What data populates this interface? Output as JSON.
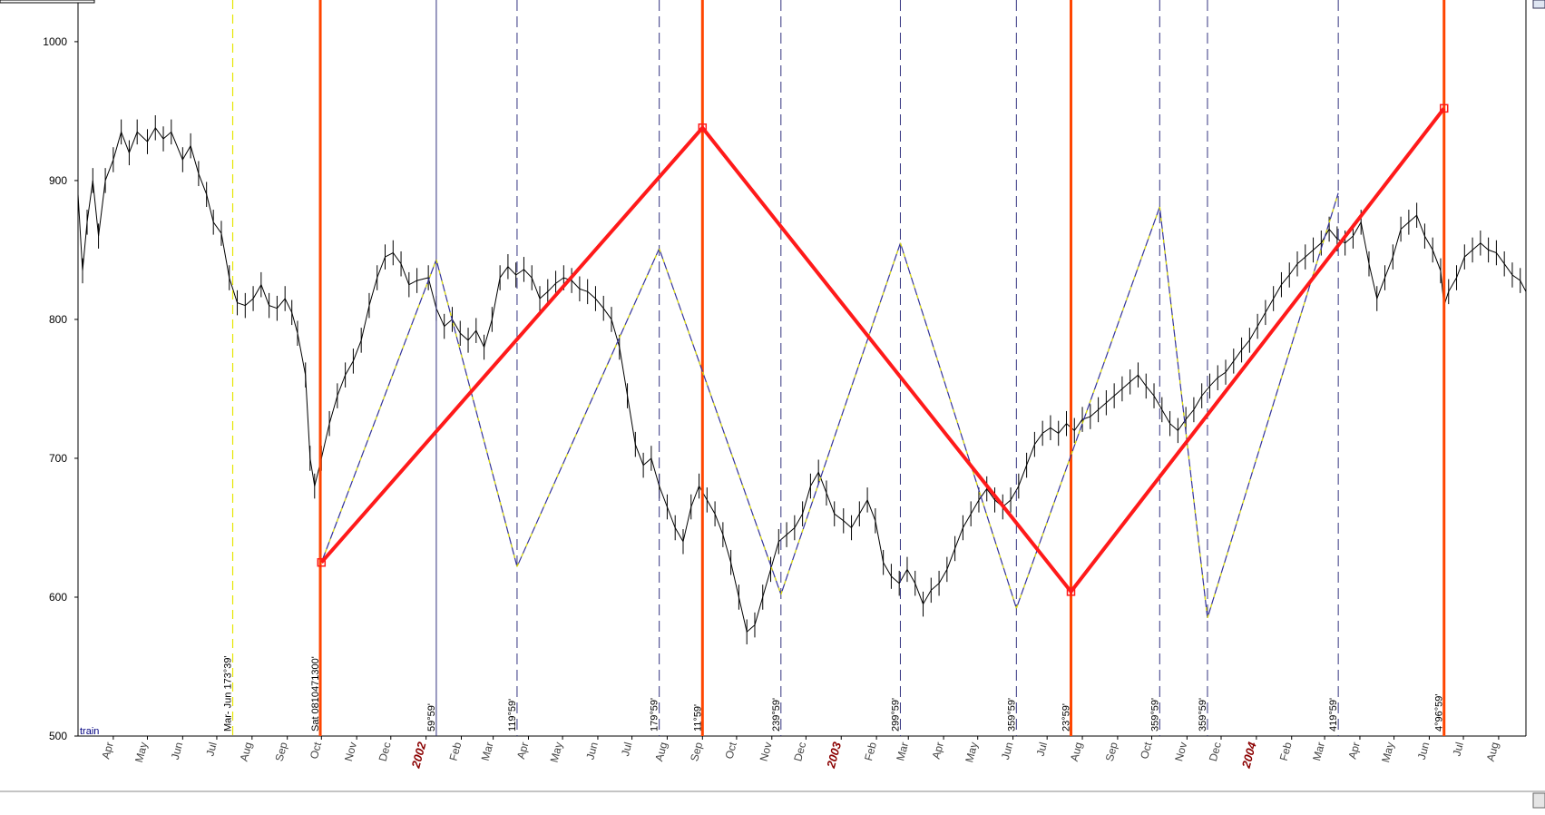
{
  "colors": {
    "price": "#000000",
    "major_cycle": "#ff4500",
    "zigzag_main": "#ff1a1a",
    "zigzag_thin": "#333399",
    "zigzag_thin_alt": "#e6e600",
    "minor_cycle": "#333380",
    "year_label": "#8b0000",
    "legend": "#000080"
  },
  "legend": {
    "label": "train"
  },
  "chart_data": {
    "type": "line",
    "title": "",
    "xlabel": "",
    "ylabel": "",
    "ylim": [
      500,
      1030
    ],
    "xlim": [
      "2001-03-01",
      "2004-08-25"
    ],
    "yticks": [
      500,
      600,
      700,
      800,
      900,
      1000
    ],
    "grid": false,
    "x_month_labels": [
      {
        "date": "2001-04-01",
        "label": "Apr"
      },
      {
        "date": "2001-05-01",
        "label": "May"
      },
      {
        "date": "2001-06-01",
        "label": "Jun"
      },
      {
        "date": "2001-07-01",
        "label": "Jul"
      },
      {
        "date": "2001-08-01",
        "label": "Aug"
      },
      {
        "date": "2001-09-01",
        "label": "Sep"
      },
      {
        "date": "2001-10-01",
        "label": "Oct"
      },
      {
        "date": "2001-11-01",
        "label": "Nov"
      },
      {
        "date": "2001-12-01",
        "label": "Dec"
      },
      {
        "date": "2002-01-01",
        "label": "2002",
        "year": true
      },
      {
        "date": "2002-02-01",
        "label": "Feb"
      },
      {
        "date": "2002-03-01",
        "label": "Mar"
      },
      {
        "date": "2002-04-01",
        "label": "Apr"
      },
      {
        "date": "2002-05-01",
        "label": "May"
      },
      {
        "date": "2002-06-01",
        "label": "Jun"
      },
      {
        "date": "2002-07-01",
        "label": "Jul"
      },
      {
        "date": "2002-08-01",
        "label": "Aug"
      },
      {
        "date": "2002-09-01",
        "label": "Sep"
      },
      {
        "date": "2002-10-01",
        "label": "Oct"
      },
      {
        "date": "2002-11-01",
        "label": "Nov"
      },
      {
        "date": "2002-12-01",
        "label": "Dec"
      },
      {
        "date": "2003-01-01",
        "label": "2003",
        "year": true
      },
      {
        "date": "2003-02-01",
        "label": "Feb"
      },
      {
        "date": "2003-03-01",
        "label": "Mar"
      },
      {
        "date": "2003-04-01",
        "label": "Apr"
      },
      {
        "date": "2003-05-01",
        "label": "May"
      },
      {
        "date": "2003-06-01",
        "label": "Jun"
      },
      {
        "date": "2003-07-01",
        "label": "Jul"
      },
      {
        "date": "2003-08-01",
        "label": "Aug"
      },
      {
        "date": "2003-09-01",
        "label": "Sep"
      },
      {
        "date": "2003-10-01",
        "label": "Oct"
      },
      {
        "date": "2003-11-01",
        "label": "Nov"
      },
      {
        "date": "2003-12-01",
        "label": "Dec"
      },
      {
        "date": "2004-01-01",
        "label": "2004",
        "year": true
      },
      {
        "date": "2004-02-01",
        "label": "Feb"
      },
      {
        "date": "2004-03-01",
        "label": "Mar"
      },
      {
        "date": "2004-04-01",
        "label": "Apr"
      },
      {
        "date": "2004-05-01",
        "label": "May"
      },
      {
        "date": "2004-06-01",
        "label": "Jun"
      },
      {
        "date": "2004-07-01",
        "label": "Jul"
      },
      {
        "date": "2004-08-01",
        "label": "Aug"
      }
    ],
    "series": [
      {
        "name": "",
        "style": "price",
        "points": [
          [
            "2001-03-01",
            890
          ],
          [
            "2001-03-05",
            835
          ],
          [
            "2001-03-09",
            870
          ],
          [
            "2001-03-14",
            900
          ],
          [
            "2001-03-19",
            860
          ],
          [
            "2001-03-25",
            900
          ],
          [
            "2001-04-01",
            915
          ],
          [
            "2001-04-08",
            935
          ],
          [
            "2001-04-15",
            920
          ],
          [
            "2001-04-22",
            935
          ],
          [
            "2001-05-01",
            928
          ],
          [
            "2001-05-08",
            938
          ],
          [
            "2001-05-15",
            930
          ],
          [
            "2001-05-22",
            935
          ],
          [
            "2001-06-01",
            915
          ],
          [
            "2001-06-08",
            925
          ],
          [
            "2001-06-15",
            905
          ],
          [
            "2001-06-22",
            890
          ],
          [
            "2001-06-28",
            870
          ],
          [
            "2001-07-05",
            862
          ],
          [
            "2001-07-12",
            830
          ],
          [
            "2001-07-19",
            812
          ],
          [
            "2001-07-26",
            810
          ],
          [
            "2001-08-02",
            815
          ],
          [
            "2001-08-09",
            825
          ],
          [
            "2001-08-16",
            810
          ],
          [
            "2001-08-23",
            808
          ],
          [
            "2001-08-30",
            815
          ],
          [
            "2001-09-05",
            805
          ],
          [
            "2001-09-10",
            790
          ],
          [
            "2001-09-17",
            760
          ],
          [
            "2001-09-21",
            700
          ],
          [
            "2001-09-25",
            680
          ],
          [
            "2001-10-01",
            700
          ],
          [
            "2001-10-08",
            725
          ],
          [
            "2001-10-15",
            745
          ],
          [
            "2001-10-22",
            760
          ],
          [
            "2001-10-29",
            770
          ],
          [
            "2001-11-05",
            785
          ],
          [
            "2001-11-12",
            810
          ],
          [
            "2001-11-19",
            830
          ],
          [
            "2001-11-26",
            845
          ],
          [
            "2001-12-03",
            848
          ],
          [
            "2001-12-10",
            840
          ],
          [
            "2001-12-17",
            825
          ],
          [
            "2001-12-24",
            828
          ],
          [
            "2002-01-03",
            830
          ],
          [
            "2002-01-10",
            808
          ],
          [
            "2002-01-17",
            795
          ],
          [
            "2002-01-24",
            800
          ],
          [
            "2002-01-31",
            790
          ],
          [
            "2002-02-07",
            785
          ],
          [
            "2002-02-14",
            792
          ],
          [
            "2002-02-21",
            780
          ],
          [
            "2002-02-28",
            800
          ],
          [
            "2002-03-07",
            830
          ],
          [
            "2002-03-14",
            838
          ],
          [
            "2002-03-21",
            832
          ],
          [
            "2002-03-28",
            836
          ],
          [
            "2002-04-04",
            830
          ],
          [
            "2002-04-11",
            815
          ],
          [
            "2002-04-18",
            820
          ],
          [
            "2002-04-25",
            826
          ],
          [
            "2002-05-02",
            830
          ],
          [
            "2002-05-09",
            828
          ],
          [
            "2002-05-16",
            822
          ],
          [
            "2002-05-23",
            820
          ],
          [
            "2002-05-30",
            815
          ],
          [
            "2002-06-06",
            808
          ],
          [
            "2002-06-13",
            800
          ],
          [
            "2002-06-20",
            780
          ],
          [
            "2002-06-27",
            745
          ],
          [
            "2002-07-04",
            710
          ],
          [
            "2002-07-11",
            695
          ],
          [
            "2002-07-18",
            700
          ],
          [
            "2002-07-25",
            680
          ],
          [
            "2002-08-01",
            665
          ],
          [
            "2002-08-08",
            650
          ],
          [
            "2002-08-15",
            640
          ],
          [
            "2002-08-22",
            665
          ],
          [
            "2002-08-29",
            680
          ],
          [
            "2002-09-05",
            670
          ],
          [
            "2002-09-12",
            660
          ],
          [
            "2002-09-19",
            645
          ],
          [
            "2002-09-26",
            625
          ],
          [
            "2002-10-03",
            600
          ],
          [
            "2002-10-10",
            575
          ],
          [
            "2002-10-17",
            580
          ],
          [
            "2002-10-24",
            600
          ],
          [
            "2002-10-31",
            620
          ],
          [
            "2002-11-07",
            640
          ],
          [
            "2002-11-14",
            645
          ],
          [
            "2002-11-21",
            650
          ],
          [
            "2002-11-28",
            660
          ],
          [
            "2002-12-05",
            680
          ],
          [
            "2002-12-12",
            690
          ],
          [
            "2002-12-19",
            675
          ],
          [
            "2002-12-26",
            660
          ],
          [
            "2003-01-03",
            655
          ],
          [
            "2003-01-10",
            650
          ],
          [
            "2003-01-17",
            660
          ],
          [
            "2003-01-24",
            670
          ],
          [
            "2003-01-31",
            655
          ],
          [
            "2003-02-07",
            625
          ],
          [
            "2003-02-14",
            615
          ],
          [
            "2003-02-21",
            610
          ],
          [
            "2003-02-28",
            620
          ],
          [
            "2003-03-07",
            610
          ],
          [
            "2003-03-14",
            595
          ],
          [
            "2003-03-21",
            605
          ],
          [
            "2003-03-28",
            610
          ],
          [
            "2003-04-04",
            620
          ],
          [
            "2003-04-11",
            635
          ],
          [
            "2003-04-18",
            650
          ],
          [
            "2003-04-25",
            660
          ],
          [
            "2003-05-02",
            670
          ],
          [
            "2003-05-09",
            678
          ],
          [
            "2003-05-16",
            670
          ],
          [
            "2003-05-23",
            665
          ],
          [
            "2003-05-30",
            670
          ],
          [
            "2003-06-06",
            680
          ],
          [
            "2003-06-13",
            695
          ],
          [
            "2003-06-20",
            710
          ],
          [
            "2003-06-27",
            718
          ],
          [
            "2003-07-04",
            722
          ],
          [
            "2003-07-11",
            718
          ],
          [
            "2003-07-18",
            725
          ],
          [
            "2003-07-25",
            720
          ],
          [
            "2003-08-01",
            728
          ],
          [
            "2003-08-08",
            730
          ],
          [
            "2003-08-15",
            735
          ],
          [
            "2003-08-22",
            740
          ],
          [
            "2003-08-29",
            745
          ],
          [
            "2003-09-05",
            750
          ],
          [
            "2003-09-12",
            755
          ],
          [
            "2003-09-19",
            760
          ],
          [
            "2003-09-26",
            752
          ],
          [
            "2003-10-03",
            745
          ],
          [
            "2003-10-10",
            735
          ],
          [
            "2003-10-17",
            725
          ],
          [
            "2003-10-24",
            720
          ],
          [
            "2003-10-31",
            728
          ],
          [
            "2003-11-07",
            735
          ],
          [
            "2003-11-14",
            745
          ],
          [
            "2003-11-21",
            752
          ],
          [
            "2003-11-28",
            758
          ],
          [
            "2003-12-05",
            762
          ],
          [
            "2003-12-12",
            770
          ],
          [
            "2003-12-19",
            778
          ],
          [
            "2003-12-26",
            785
          ],
          [
            "2004-01-02",
            795
          ],
          [
            "2004-01-09",
            805
          ],
          [
            "2004-01-16",
            815
          ],
          [
            "2004-01-23",
            825
          ],
          [
            "2004-01-30",
            832
          ],
          [
            "2004-02-06",
            840
          ],
          [
            "2004-02-13",
            845
          ],
          [
            "2004-02-20",
            850
          ],
          [
            "2004-02-27",
            855
          ],
          [
            "2004-03-05",
            865
          ],
          [
            "2004-03-12",
            858
          ],
          [
            "2004-03-19",
            855
          ],
          [
            "2004-03-26",
            860
          ],
          [
            "2004-04-02",
            870
          ],
          [
            "2004-04-09",
            840
          ],
          [
            "2004-04-16",
            815
          ],
          [
            "2004-04-23",
            830
          ],
          [
            "2004-04-30",
            845
          ],
          [
            "2004-05-07",
            865
          ],
          [
            "2004-05-14",
            870
          ],
          [
            "2004-05-21",
            875
          ],
          [
            "2004-05-28",
            860
          ],
          [
            "2004-06-04",
            850
          ],
          [
            "2004-06-11",
            835
          ],
          [
            "2004-06-14",
            810
          ],
          [
            "2004-06-18",
            820
          ],
          [
            "2004-06-25",
            830
          ],
          [
            "2004-07-02",
            845
          ],
          [
            "2004-07-09",
            850
          ],
          [
            "2004-07-16",
            855
          ],
          [
            "2004-07-23",
            850
          ],
          [
            "2004-07-30",
            848
          ],
          [
            "2004-08-06",
            840
          ],
          [
            "2004-08-13",
            832
          ],
          [
            "2004-08-20",
            828
          ],
          [
            "2004-08-25",
            820
          ]
        ]
      },
      {
        "name": "",
        "style": "zigzag_main",
        "points": [
          [
            "2001-10-01",
            625
          ],
          [
            "2002-09-01",
            938
          ],
          [
            "2003-07-22",
            604
          ],
          [
            "2004-06-14",
            952
          ]
        ]
      },
      {
        "name": "",
        "style": "zigzag_thin",
        "points": [
          [
            "2001-10-01",
            625
          ],
          [
            "2002-01-10",
            843
          ],
          [
            "2002-03-22",
            622
          ],
          [
            "2002-07-25",
            851
          ],
          [
            "2002-11-09",
            602
          ],
          [
            "2003-02-22",
            855
          ],
          [
            "2003-06-04",
            592
          ],
          [
            "2003-10-08",
            881
          ],
          [
            "2003-11-19",
            585
          ],
          [
            "2004-03-13",
            891
          ]
        ]
      }
    ],
    "vertical_lines": [
      {
        "date": "2001-07-15",
        "style": "thin_dashed_yellow",
        "label": "Mar- Jun 173°39'"
      },
      {
        "date": "2001-09-30",
        "style": "major",
        "label": "Sat 0810471300'"
      },
      {
        "date": "2002-01-10",
        "style": "thin_solid",
        "label": "59°59'"
      },
      {
        "date": "2002-03-22",
        "style": "thin_dashed",
        "label": "119°59'"
      },
      {
        "date": "2002-07-25",
        "style": "thin_dashed",
        "label": "179°59'"
      },
      {
        "date": "2002-09-01",
        "style": "major",
        "label": "11°59'"
      },
      {
        "date": "2002-11-09",
        "style": "thin_dashed",
        "label": "239°59'"
      },
      {
        "date": "2003-02-22",
        "style": "thin_dashed",
        "label": "299°59'"
      },
      {
        "date": "2003-06-04",
        "style": "thin_dashed",
        "label": "359°59'"
      },
      {
        "date": "2003-07-22",
        "style": "major",
        "label": "23°59'"
      },
      {
        "date": "2003-10-08",
        "style": "thin_dashed",
        "label": "359°59'"
      },
      {
        "date": "2003-11-19",
        "style": "thin_dashed",
        "label": "359°59'"
      },
      {
        "date": "2004-03-13",
        "style": "thin_dashed",
        "label": "419°59'"
      },
      {
        "date": "2004-06-14",
        "style": "major",
        "label": "4°96°59'"
      }
    ]
  }
}
